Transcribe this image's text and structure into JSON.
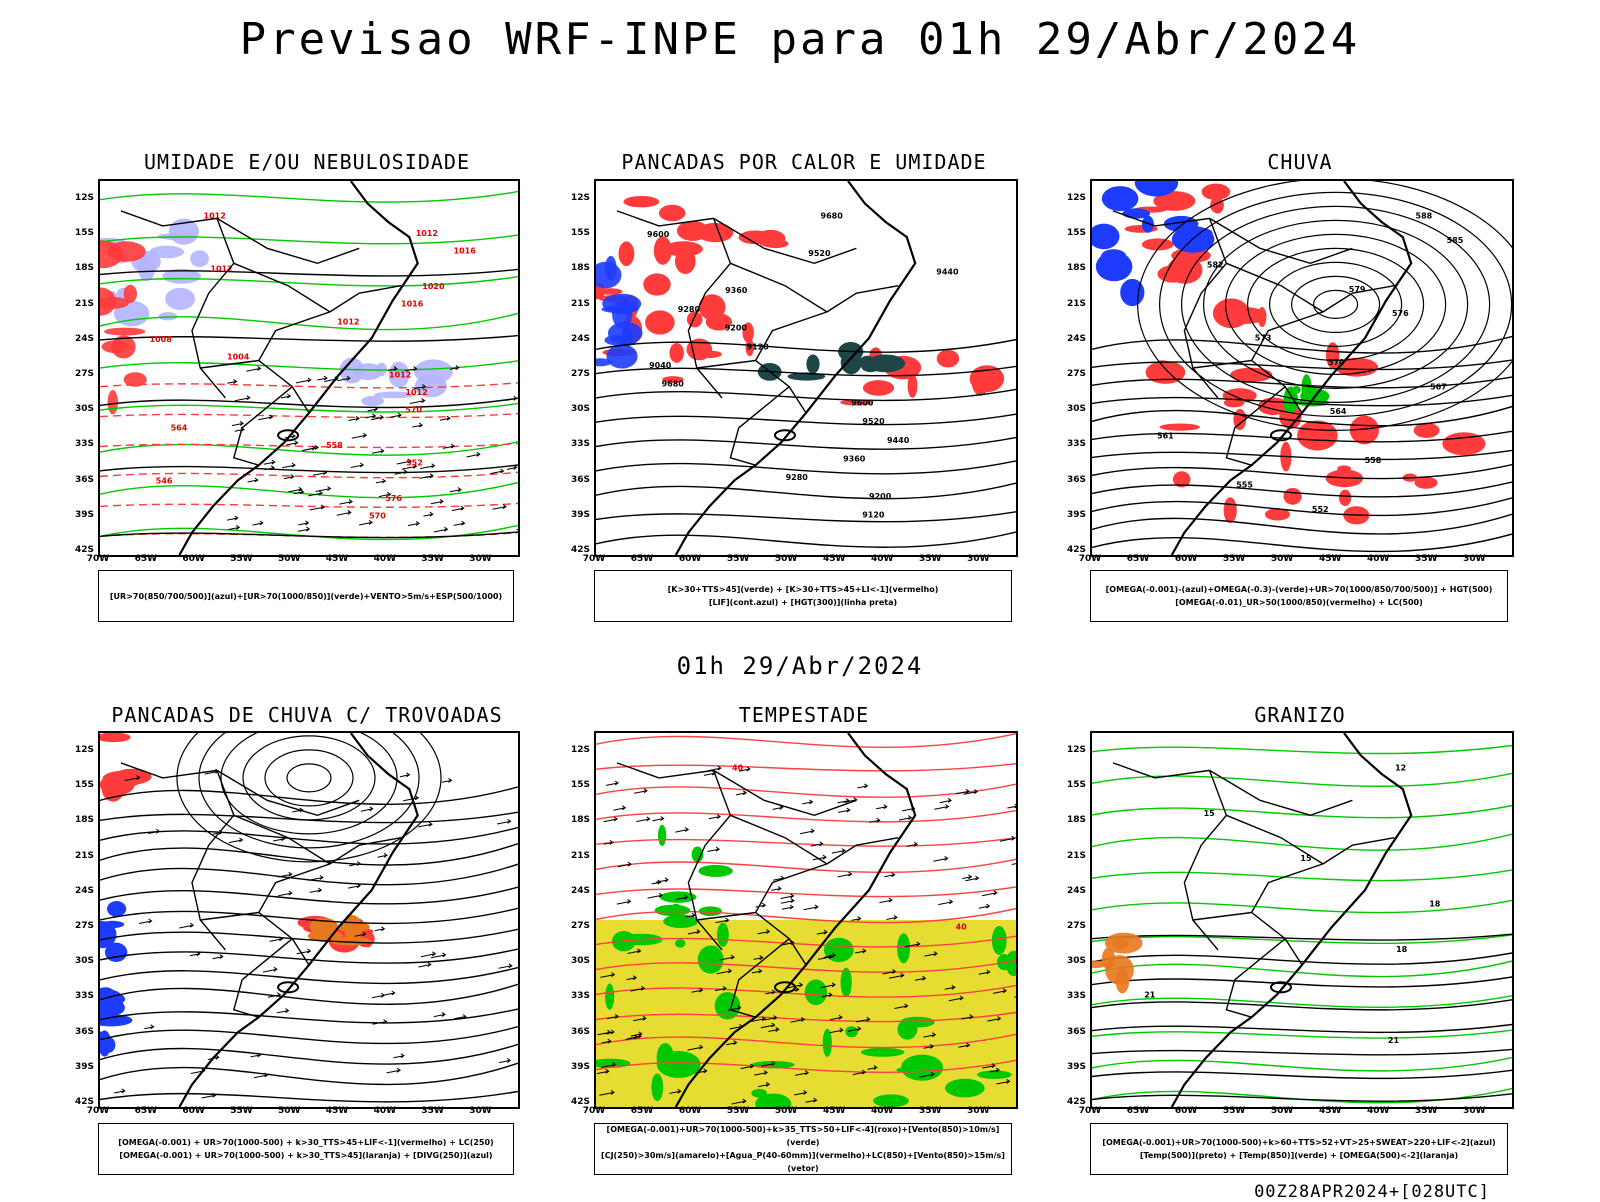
{
  "page": {
    "title": "Previsao WRF-INPE  para 01h 29/Abr/2024",
    "mid_date": "01h 29/Abr/2024",
    "footer": "00Z28APR2024+[028UTC]"
  },
  "axes": {
    "lat_ticks": [
      "12S",
      "15S",
      "18S",
      "21S",
      "24S",
      "27S",
      "30S",
      "33S",
      "36S",
      "39S",
      "42S"
    ],
    "lon_ticks": [
      "70W",
      "65W",
      "60W",
      "55W",
      "50W",
      "45W",
      "40W",
      "35W",
      "30W"
    ]
  },
  "panels": [
    {
      "id": "umidade",
      "title": "UMIDADE E/OU NEBULOSIDADE",
      "legend": [
        "[UR>70(850/700/500)](azul)+[UR>70(1000/850)](verde)+VENTO>5m/s+ESP(500/1000)"
      ],
      "contour_labels": [
        "1012",
        "1012",
        "1016",
        "1012",
        "1020",
        "1016",
        "1012",
        "1008",
        "1004",
        "1012",
        "1012",
        "570",
        "564",
        "558",
        "552",
        "546",
        "576",
        "570"
      ]
    },
    {
      "id": "pancadas-calor",
      "title": "PANCADAS POR CALOR E UMIDADE",
      "legend": [
        "[K>30+TTS>45](verde) + [K>30+TTS>45+LI<-1](vermelho)",
        "[LIF](cont.azul) + [HGT(300)](linha preta)"
      ],
      "contour_labels": [
        "9680",
        "9600",
        "9520",
        "9440",
        "9360",
        "9280",
        "9200",
        "9120",
        "9040",
        "9680",
        "9600",
        "9520",
        "9440",
        "9360",
        "9280",
        "9200",
        "9120"
      ]
    },
    {
      "id": "chuva",
      "title": "CHUVA",
      "legend": [
        "[OMEGA(-0.001)-(azul)+OMEGA(-0.3)-(verde)+UR>70(1000/850/700/500)] + HGT(500)",
        "[OMEGA(-0.01)_UR>50(1000/850)(vermelho) + LC(500)"
      ],
      "contour_labels": [
        "588",
        "585",
        "582",
        "579",
        "576",
        "573",
        "570",
        "567",
        "564",
        "561",
        "558",
        "555",
        "552"
      ]
    },
    {
      "id": "pancadas-trovoadas",
      "title": "PANCADAS DE CHUVA C/ TROVOADAS",
      "legend": [
        "[OMEGA(-0.001) + UR>70(1000-500) + k>30_TTS>45+LIF<-1](vermelho) + LC(250)",
        "[OMEGA(-0.001) + UR>70(1000-500) + k>30_TTS>45](laranja) + [DIVG(250)](azul)"
      ],
      "contour_labels": []
    },
    {
      "id": "tempestade",
      "title": "TEMPESTADE",
      "legend": [
        "[OMEGA(-0.001)+UR>70(1000-500)+k>35_TTS>50+LIF<-4](roxo)+[Vento(850)>10m/s](verde)",
        "[CJ(250)>30m/s](amarelo)+[Agua_P(40-60mm)](vermelho)+LC(850)+[Vento(850)>15m/s](vetor)"
      ],
      "contour_labels": [
        "40",
        "40"
      ]
    },
    {
      "id": "granizo",
      "title": "GRANIZO",
      "legend": [
        "[OMEGA(-0.001)+UR>70(1000-500)+k>60+TTS>52+VT>25+SWEAT>220+LIF<-2](azul)",
        "[Temp(500)](preto) + [Temp(850)](verde) + [OMEGA(500)<-2](laranja)"
      ],
      "contour_labels": [
        "12",
        "15",
        "15",
        "18",
        "18",
        "21",
        "21"
      ]
    }
  ],
  "colors": {
    "red": "#ff3b3b",
    "green": "#00c800",
    "blue": "#1e3cff",
    "lavender": "#b4b4ff",
    "yellow": "#e6dc32",
    "darkgreen": "#0a7814",
    "darkteal": "#1e4646",
    "orange": "#e87820"
  }
}
